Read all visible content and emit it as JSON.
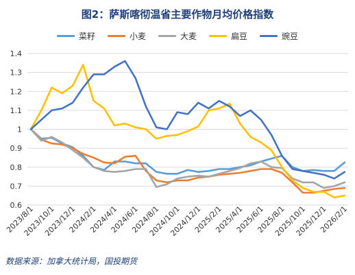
{
  "figure": {
    "title": "图2：萨斯喀彻温省主要作物月均价格指数",
    "source": "数据来源：加拿大统计局，国投期货"
  },
  "chart_data": {
    "type": "line",
    "title": "图2：萨斯喀彻温省主要作物月均价格指数",
    "xlabel": "",
    "ylabel": "",
    "ylim": [
      0.6,
      1.4
    ],
    "yticks": [
      "0.6",
      "0.7",
      "0.8",
      "0.9",
      "1",
      "1.1",
      "1.2",
      "1.3",
      "1.4"
    ],
    "grid": "horizontal",
    "legend_position": "top",
    "x_tick_labels": [
      "2023/8/1",
      "2023/10/1",
      "2023/12/1",
      "2024/2/1",
      "2024/4/1",
      "2024/6/1",
      "2024/8/1",
      "2024/10/1",
      "2024/12/1",
      "2025/2/1",
      "2025/4/1",
      "2025/6/1",
      "2025/8/1",
      "2025/10/1",
      "2025/12/1",
      "2026/2/1"
    ],
    "x": [
      "2023/8/1",
      "2023/9/1",
      "2023/10/1",
      "2023/11/1",
      "2023/12/1",
      "2024/1/1",
      "2024/2/1",
      "2024/3/1",
      "2024/4/1",
      "2024/5/1",
      "2024/6/1",
      "2024/7/1",
      "2024/8/1",
      "2024/9/1",
      "2024/10/1",
      "2024/11/1",
      "2024/12/1",
      "2025/1/1",
      "2025/2/1",
      "2025/3/1",
      "2025/4/1",
      "2025/5/1",
      "2025/6/1",
      "2025/7/1",
      "2025/8/1",
      "2025/9/1",
      "2025/10/1",
      "2025/11/1",
      "2025/12/1",
      "2026/1/1",
      "2026/2/1"
    ],
    "series": [
      {
        "name": "菜籽",
        "color": "#5b9bd5",
        "values": [
          1.0,
          0.95,
          0.955,
          0.925,
          0.905,
          0.86,
          0.8,
          0.785,
          0.83,
          0.83,
          0.82,
          0.82,
          0.775,
          0.765,
          0.765,
          0.785,
          0.775,
          0.78,
          0.79,
          0.79,
          0.8,
          0.81,
          0.83,
          0.845,
          0.86,
          0.8,
          0.78,
          0.785,
          0.78,
          0.78,
          0.825
        ]
      },
      {
        "name": "小麦",
        "color": "#ed7d31",
        "values": [
          1.0,
          0.945,
          0.925,
          0.92,
          0.9,
          0.87,
          0.85,
          0.825,
          0.82,
          0.855,
          0.86,
          0.78,
          0.73,
          0.72,
          0.73,
          0.73,
          0.745,
          0.75,
          0.76,
          0.765,
          0.77,
          0.78,
          0.79,
          0.79,
          0.77,
          0.72,
          0.665,
          0.665,
          0.675,
          0.685,
          0.69
        ]
      },
      {
        "name": "大麦",
        "color": "#a5a5a5",
        "values": [
          1.0,
          0.94,
          0.96,
          0.93,
          0.89,
          0.85,
          0.8,
          0.78,
          0.775,
          0.78,
          0.79,
          0.79,
          0.695,
          0.71,
          0.74,
          0.75,
          0.755,
          0.75,
          0.765,
          0.78,
          0.795,
          0.82,
          0.83,
          0.8,
          0.795,
          0.74,
          0.72,
          0.72,
          0.69,
          0.7,
          0.72
        ]
      },
      {
        "name": "扁豆",
        "color": "#ffc000",
        "values": [
          1.0,
          1.1,
          1.22,
          1.19,
          1.23,
          1.34,
          1.15,
          1.11,
          1.02,
          1.03,
          1.01,
          1.0,
          0.95,
          0.965,
          0.97,
          0.99,
          1.015,
          1.1,
          1.11,
          1.135,
          1.03,
          0.96,
          0.93,
          0.89,
          0.8,
          0.73,
          0.69,
          0.67,
          0.67,
          0.64,
          0.65
        ]
      },
      {
        "name": "豌豆",
        "color": "#4472c4",
        "values": [
          1.0,
          1.05,
          1.1,
          1.11,
          1.14,
          1.22,
          1.29,
          1.29,
          1.33,
          1.36,
          1.27,
          1.12,
          1.01,
          1.0,
          1.09,
          1.08,
          1.14,
          1.11,
          1.15,
          1.12,
          1.07,
          1.1,
          1.05,
          0.97,
          0.86,
          0.79,
          0.78,
          0.77,
          0.76,
          0.74,
          0.775
        ]
      }
    ]
  }
}
